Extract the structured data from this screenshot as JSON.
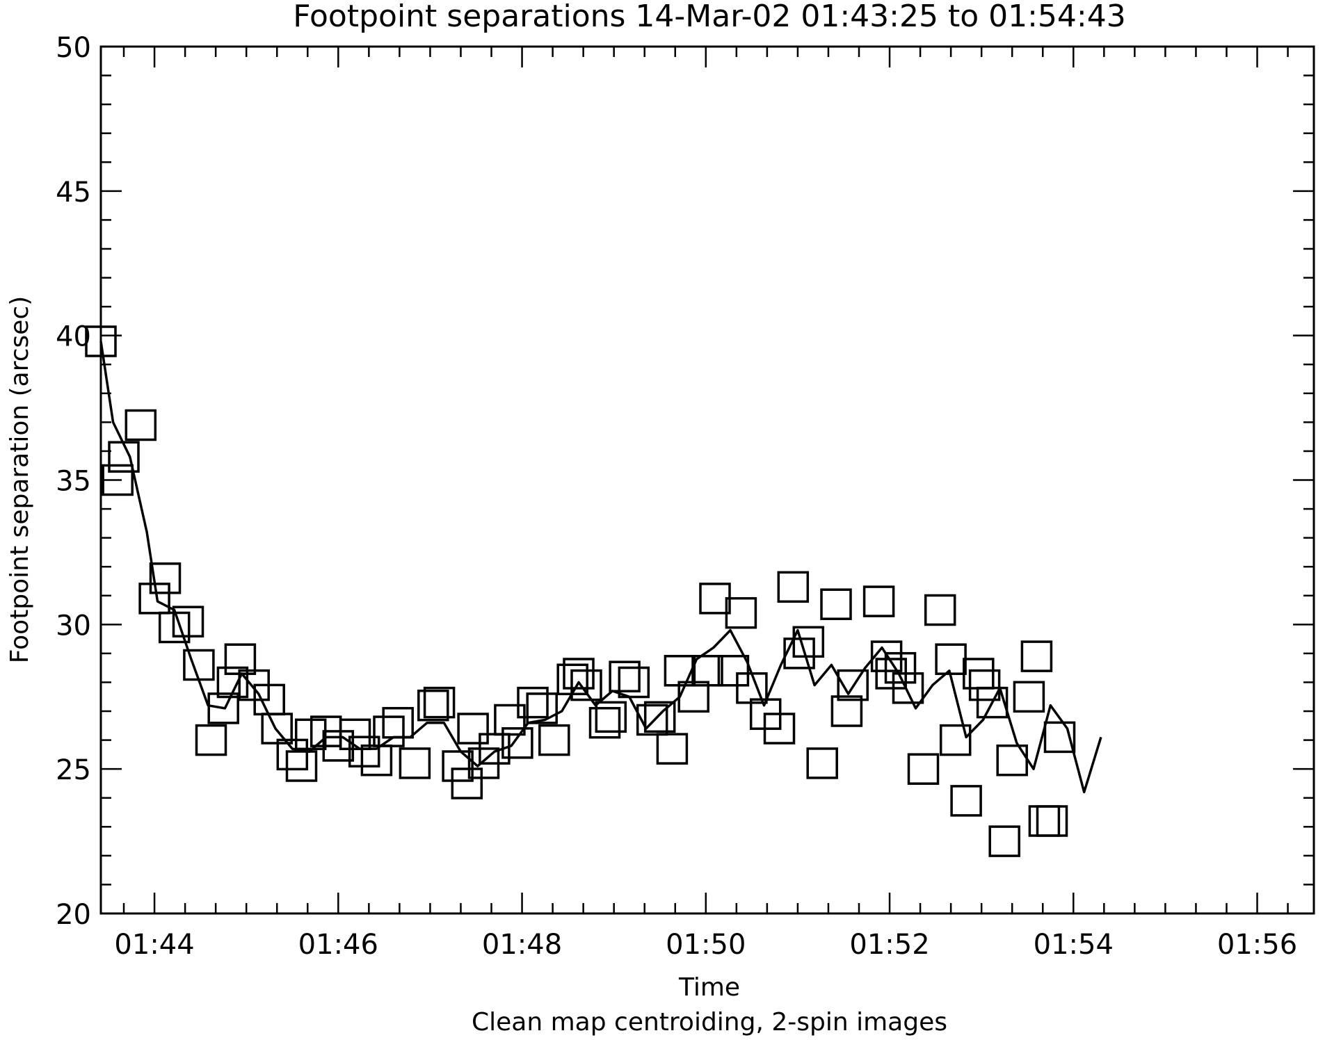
{
  "chart_data": {
    "type": "scatter",
    "title": "Footpoint separations 14-Mar-02 01:43:25 to 01:54:43",
    "xlabel": "Time",
    "subtitle": "Clean map centroiding, 2-spin images",
    "ylabel": "Footpoint separation (arcsec)",
    "xlim": [
      "01:43:25",
      "01:56:37"
    ],
    "ylim": [
      20,
      50
    ],
    "x_ticks": [
      "01:44",
      "01:46",
      "01:48",
      "01:50",
      "01:52",
      "01:54",
      "01:56"
    ],
    "y_ticks": [
      20,
      25,
      30,
      35,
      40,
      45,
      50
    ],
    "grid": false,
    "series": [
      {
        "marker": "open-square",
        "points": [
          [
            "01:43:25",
            39.8
          ],
          [
            "01:43:36",
            35.0
          ],
          [
            "01:43:40",
            35.8
          ],
          [
            "01:43:51",
            36.9
          ],
          [
            "01:44:00",
            30.9
          ],
          [
            "01:44:07",
            31.6
          ],
          [
            "01:44:13",
            29.9
          ],
          [
            "01:44:22",
            30.1
          ],
          [
            "01:44:29",
            28.6
          ],
          [
            "01:44:37",
            26.0
          ],
          [
            "01:44:45",
            27.1
          ],
          [
            "01:44:51",
            28.0
          ],
          [
            "01:44:56",
            28.8
          ],
          [
            "01:45:05",
            27.9
          ],
          [
            "01:45:15",
            27.4
          ],
          [
            "01:45:20",
            26.4
          ],
          [
            "01:45:30",
            25.5
          ],
          [
            "01:45:36",
            25.1
          ],
          [
            "01:45:42",
            26.2
          ],
          [
            "01:45:52",
            26.3
          ],
          [
            "01:46:00",
            25.8
          ],
          [
            "01:46:11",
            26.2
          ],
          [
            "01:46:17",
            25.6
          ],
          [
            "01:46:25",
            25.3
          ],
          [
            "01:46:33",
            26.3
          ],
          [
            "01:46:39",
            26.6
          ],
          [
            "01:46:50",
            25.2
          ],
          [
            "01:47:02",
            27.2
          ],
          [
            "01:47:06",
            27.3
          ],
          [
            "01:47:18",
            25.1
          ],
          [
            "01:47:24",
            24.5
          ],
          [
            "01:47:28",
            26.4
          ],
          [
            "01:47:35",
            25.2
          ],
          [
            "01:47:42",
            25.7
          ],
          [
            "01:47:52",
            26.7
          ],
          [
            "01:47:57",
            25.9
          ],
          [
            "01:48:07",
            27.3
          ],
          [
            "01:48:13",
            27.1
          ],
          [
            "01:48:21",
            26.0
          ],
          [
            "01:48:33",
            28.1
          ],
          [
            "01:48:37",
            28.3
          ],
          [
            "01:48:42",
            27.9
          ],
          [
            "01:48:54",
            26.6
          ],
          [
            "01:48:58",
            26.8
          ],
          [
            "01:49:07",
            28.2
          ],
          [
            "01:49:13",
            28.0
          ],
          [
            "01:49:25",
            26.7
          ],
          [
            "01:49:30",
            26.8
          ],
          [
            "01:49:38",
            25.7
          ],
          [
            "01:49:43",
            28.4
          ],
          [
            "01:49:52",
            27.5
          ],
          [
            "01:50:01",
            28.4
          ],
          [
            "01:50:06",
            30.9
          ],
          [
            "01:50:18",
            28.4
          ],
          [
            "01:50:23",
            30.4
          ],
          [
            "01:50:30",
            27.8
          ],
          [
            "01:50:39",
            26.9
          ],
          [
            "01:50:48",
            26.4
          ],
          [
            "01:50:57",
            31.3
          ],
          [
            "01:51:01",
            29.0
          ],
          [
            "01:51:07",
            29.4
          ],
          [
            "01:51:16",
            25.2
          ],
          [
            "01:51:25",
            30.7
          ],
          [
            "01:51:32",
            27.0
          ],
          [
            "01:51:36",
            27.9
          ],
          [
            "01:51:53",
            30.8
          ],
          [
            "01:51:58",
            28.9
          ],
          [
            "01:52:01",
            28.3
          ],
          [
            "01:52:07",
            28.5
          ],
          [
            "01:52:12",
            27.8
          ],
          [
            "01:52:22",
            25.0
          ],
          [
            "01:52:33",
            30.5
          ],
          [
            "01:52:40",
            28.8
          ],
          [
            "01:52:43",
            26.0
          ],
          [
            "01:52:50",
            23.9
          ],
          [
            "01:52:58",
            28.3
          ],
          [
            "01:53:02",
            27.9
          ],
          [
            "01:53:07",
            27.3
          ],
          [
            "01:53:15",
            22.5
          ],
          [
            "01:53:20",
            25.3
          ],
          [
            "01:53:31",
            27.5
          ],
          [
            "01:53:36",
            28.9
          ],
          [
            "01:53:41",
            23.2
          ],
          [
            "01:53:46",
            23.2
          ],
          [
            "01:53:51",
            26.1
          ]
        ]
      },
      {
        "marker": "line",
        "points": [
          [
            "01:43:25",
            39.8
          ],
          [
            "01:43:33",
            37.0
          ],
          [
            "01:43:44",
            35.8
          ],
          [
            "01:43:55",
            33.2
          ],
          [
            "01:44:02",
            30.8
          ],
          [
            "01:44:13",
            30.5
          ],
          [
            "01:44:24",
            28.8
          ],
          [
            "01:44:35",
            27.2
          ],
          [
            "01:44:46",
            27.1
          ],
          [
            "01:44:57",
            28.3
          ],
          [
            "01:45:08",
            27.6
          ],
          [
            "01:45:19",
            26.4
          ],
          [
            "01:45:30",
            25.7
          ],
          [
            "01:45:41",
            25.6
          ],
          [
            "01:45:52",
            26.1
          ],
          [
            "01:46:03",
            26.1
          ],
          [
            "01:46:14",
            25.7
          ],
          [
            "01:46:25",
            25.7
          ],
          [
            "01:46:36",
            26.1
          ],
          [
            "01:46:47",
            26.1
          ],
          [
            "01:46:58",
            26.6
          ],
          [
            "01:47:09",
            26.6
          ],
          [
            "01:47:20",
            25.6
          ],
          [
            "01:47:31",
            25.1
          ],
          [
            "01:47:42",
            25.6
          ],
          [
            "01:47:53",
            25.8
          ],
          [
            "01:48:04",
            26.6
          ],
          [
            "01:48:15",
            26.7
          ],
          [
            "01:48:26",
            27.0
          ],
          [
            "01:48:37",
            28.0
          ],
          [
            "01:48:48",
            27.2
          ],
          [
            "01:48:59",
            27.7
          ],
          [
            "01:49:10",
            27.5
          ],
          [
            "01:49:21",
            26.4
          ],
          [
            "01:49:32",
            27.0
          ],
          [
            "01:49:43",
            27.5
          ],
          [
            "01:49:54",
            28.8
          ],
          [
            "01:50:05",
            29.2
          ],
          [
            "01:50:16",
            29.8
          ],
          [
            "01:50:27",
            28.7
          ],
          [
            "01:50:38",
            27.2
          ],
          [
            "01:50:49",
            28.6
          ],
          [
            "01:51:00",
            29.8
          ],
          [
            "01:51:11",
            27.9
          ],
          [
            "01:51:22",
            28.6
          ],
          [
            "01:51:33",
            27.6
          ],
          [
            "01:51:44",
            28.5
          ],
          [
            "01:51:55",
            29.2
          ],
          [
            "01:52:06",
            28.3
          ],
          [
            "01:52:17",
            27.1
          ],
          [
            "01:52:28",
            27.9
          ],
          [
            "01:52:39",
            28.4
          ],
          [
            "01:52:50",
            26.1
          ],
          [
            "01:53:01",
            26.7
          ],
          [
            "01:53:12",
            27.8
          ],
          [
            "01:53:23",
            25.9
          ],
          [
            "01:53:34",
            25.0
          ],
          [
            "01:53:45",
            27.2
          ],
          [
            "01:53:56",
            26.4
          ],
          [
            "01:54:07",
            24.2
          ],
          [
            "01:54:18",
            26.1
          ]
        ]
      }
    ]
  }
}
